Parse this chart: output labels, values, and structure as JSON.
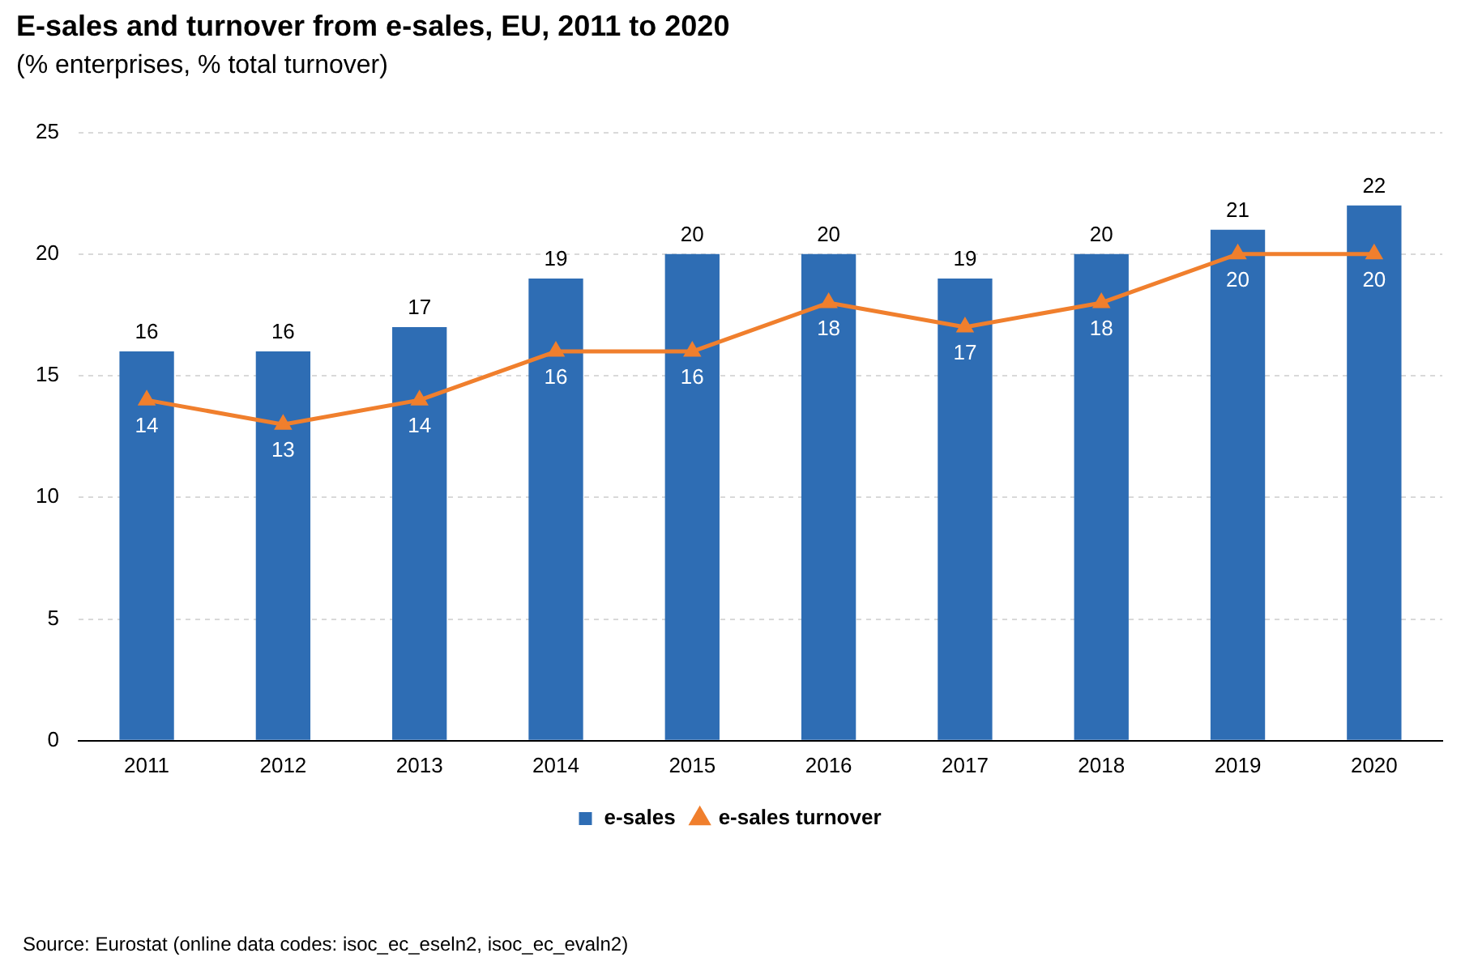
{
  "chart_data": {
    "type": "bar",
    "title": "E-sales and turnover from e-sales, EU, 2011 to 2020",
    "subtitle": "(% enterprises, % total turnover)",
    "categories": [
      "2011",
      "2012",
      "2013",
      "2014",
      "2015",
      "2016",
      "2017",
      "2018",
      "2019",
      "2020"
    ],
    "series": [
      {
        "name": "e-sales",
        "color": "#2e6db4",
        "values": [
          16,
          16,
          17,
          19,
          20,
          20,
          19,
          20,
          21,
          22
        ]
      },
      {
        "name": "e-sales turnover",
        "type": "line",
        "color": "#f07f2d",
        "values": [
          14,
          13,
          14,
          16,
          16,
          18,
          17,
          18,
          20,
          20
        ]
      }
    ],
    "ylim": [
      0,
      25
    ],
    "yticks": [
      0,
      5,
      10,
      15,
      20,
      25
    ],
    "grid": "y",
    "legend": "bottom",
    "marker": "triangle",
    "data_labels": true,
    "annotations": [
      "Source: Eurostat (online data codes: isoc_ec_eseln2, isoc_ec_evaln2)"
    ]
  }
}
